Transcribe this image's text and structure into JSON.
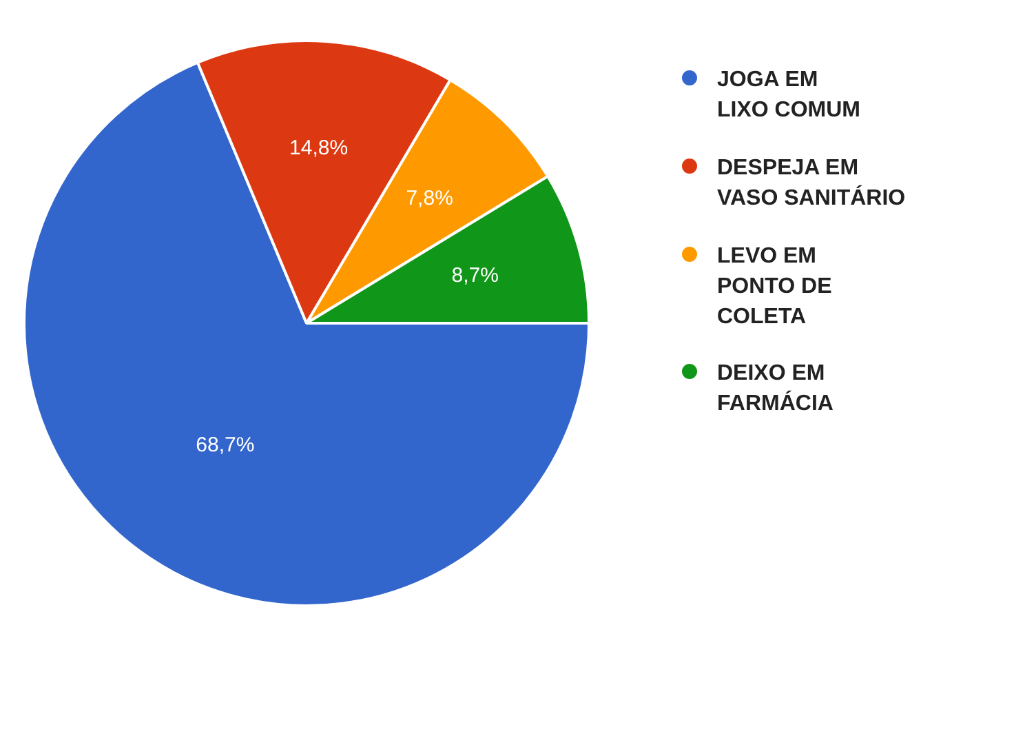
{
  "chart_data": {
    "type": "pie",
    "categories": [
      "JOGA EM\nLIXO COMUM",
      "DESPEJA EM\nVASO SANITÁRIO",
      "LEVO EM\nPONTO DE\nCOLETA",
      "DEIXO EM\nFARMÁCIA"
    ],
    "values": [
      68.7,
      14.8,
      7.8,
      8.7
    ],
    "colors": [
      "#3366cc",
      "#dc3912",
      "#ff9900",
      "#109618"
    ],
    "value_labels": [
      "68,7%",
      "14,8%",
      "7,8%",
      "8,7%"
    ],
    "legend": "right"
  }
}
